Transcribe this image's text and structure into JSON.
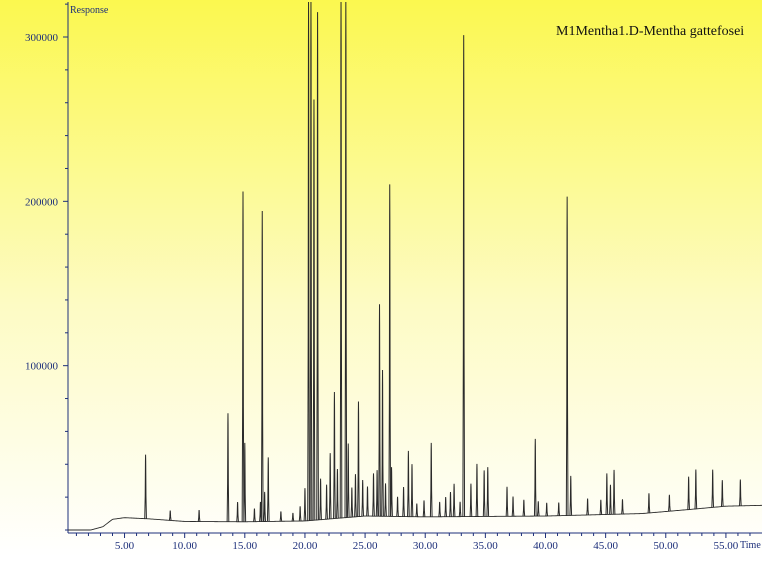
{
  "chart_data": {
    "type": "line",
    "title": "M1Mentha1.D-Mentha gattefosei",
    "xlabel": "Time",
    "ylabel": "Response",
    "xlim": [
      0.3,
      58.0
    ],
    "ylim": [
      0,
      325000
    ],
    "x_ticks": [
      5,
      10,
      15,
      20,
      25,
      30,
      35,
      40,
      45,
      50,
      55
    ],
    "x_tick_labels": [
      "5.00",
      "10.00",
      "15.00",
      "20.00",
      "25.00",
      "30.00",
      "35.00",
      "40.00",
      "45.00",
      "50.00",
      "55.00"
    ],
    "y_ticks": [
      100000,
      200000,
      300000
    ],
    "y_tick_labels": [
      "100000",
      "200000",
      "300000"
    ],
    "baseline": [
      [
        0.3,
        0
      ],
      [
        2.2,
        0
      ],
      [
        3.2,
        2000
      ],
      [
        4.0,
        6500
      ],
      [
        5.0,
        7500
      ],
      [
        7.0,
        6800
      ],
      [
        10.0,
        5200
      ],
      [
        15.0,
        5000
      ],
      [
        20.0,
        5500
      ],
      [
        25.0,
        8500
      ],
      [
        30.0,
        8000
      ],
      [
        40.0,
        8500
      ],
      [
        48.0,
        10000
      ],
      [
        52.0,
        12500
      ],
      [
        55.0,
        14500
      ],
      [
        58.0,
        15000
      ]
    ],
    "peaks": [
      [
        6.75,
        39000
      ],
      [
        8.8,
        6000
      ],
      [
        11.2,
        7000
      ],
      [
        13.6,
        66000
      ],
      [
        14.4,
        12000
      ],
      [
        14.85,
        201000
      ],
      [
        15.0,
        48000
      ],
      [
        15.8,
        8000
      ],
      [
        16.3,
        12000
      ],
      [
        16.45,
        189000
      ],
      [
        16.65,
        18000
      ],
      [
        16.95,
        39000
      ],
      [
        18.0,
        6000
      ],
      [
        19.0,
        5000
      ],
      [
        19.6,
        9000
      ],
      [
        20.0,
        20000
      ],
      [
        20.3,
        320000
      ],
      [
        20.5,
        320000
      ],
      [
        20.75,
        256000
      ],
      [
        21.05,
        309000
      ],
      [
        21.3,
        25000
      ],
      [
        21.8,
        21000
      ],
      [
        22.1,
        40000
      ],
      [
        22.45,
        77000
      ],
      [
        22.7,
        30000
      ],
      [
        23.0,
        320000
      ],
      [
        23.4,
        320000
      ],
      [
        23.6,
        45000
      ],
      [
        23.9,
        18000
      ],
      [
        24.2,
        26000
      ],
      [
        24.45,
        70000
      ],
      [
        24.8,
        22000
      ],
      [
        25.2,
        18000
      ],
      [
        25.7,
        26000
      ],
      [
        26.0,
        28000
      ],
      [
        26.2,
        129000
      ],
      [
        26.45,
        89000
      ],
      [
        26.7,
        20000
      ],
      [
        27.05,
        202000
      ],
      [
        27.2,
        30000
      ],
      [
        27.7,
        12000
      ],
      [
        28.2,
        18000
      ],
      [
        28.6,
        40000
      ],
      [
        28.9,
        32000
      ],
      [
        29.3,
        8000
      ],
      [
        29.9,
        10000
      ],
      [
        30.5,
        45000
      ],
      [
        31.2,
        9000
      ],
      [
        31.7,
        12000
      ],
      [
        32.1,
        15000
      ],
      [
        32.4,
        20000
      ],
      [
        32.9,
        9000
      ],
      [
        33.2,
        293000
      ],
      [
        33.8,
        20000
      ],
      [
        34.3,
        32000
      ],
      [
        34.9,
        28000
      ],
      [
        35.2,
        30000
      ],
      [
        36.8,
        18000
      ],
      [
        37.3,
        12000
      ],
      [
        38.2,
        10000
      ],
      [
        39.15,
        47000
      ],
      [
        39.4,
        9000
      ],
      [
        40.1,
        8000
      ],
      [
        41.1,
        8000
      ],
      [
        41.8,
        194000
      ],
      [
        42.1,
        24000
      ],
      [
        43.5,
        10000
      ],
      [
        44.6,
        9000
      ],
      [
        45.1,
        25000
      ],
      [
        45.4,
        18000
      ],
      [
        45.7,
        27000
      ],
      [
        46.4,
        9000
      ],
      [
        48.6,
        12000
      ],
      [
        50.3,
        10000
      ],
      [
        51.9,
        20000
      ],
      [
        52.5,
        24000
      ],
      [
        53.9,
        23000
      ],
      [
        54.7,
        16000
      ],
      [
        56.2,
        16000
      ]
    ]
  }
}
